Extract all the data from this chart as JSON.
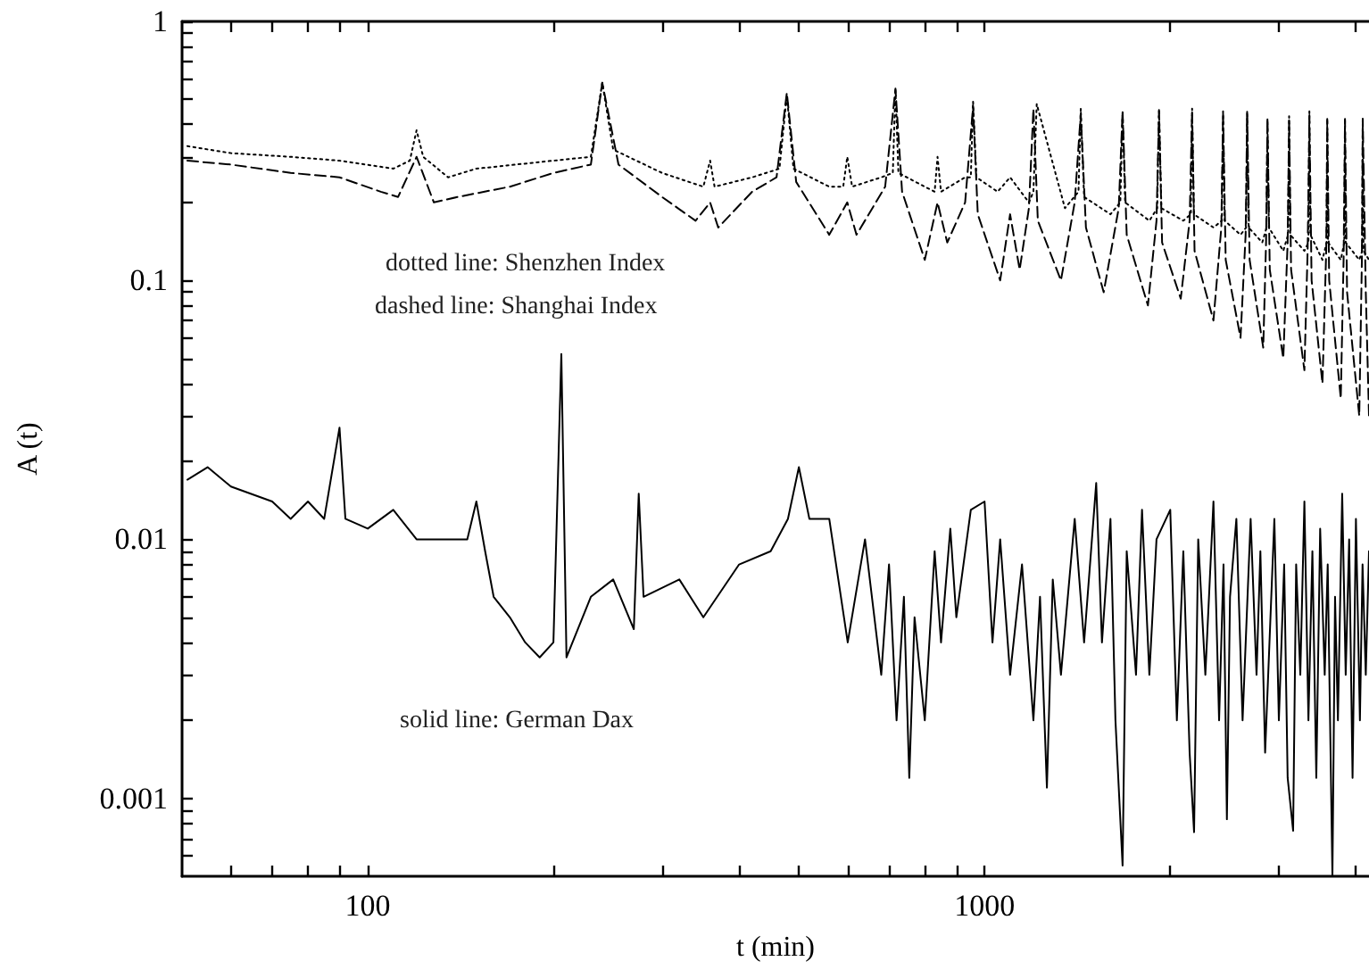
{
  "chart_data": {
    "type": "line",
    "xlabel": "t (min)",
    "ylabel": "A (t)",
    "log": "xy",
    "marker": "none",
    "xlim": [
      50,
      4200
    ],
    "ylim": [
      0.0005,
      1
    ],
    "xticks": [
      {
        "value": 60,
        "label": null
      },
      {
        "value": 70,
        "label": null
      },
      {
        "value": 80,
        "label": null
      },
      {
        "value": 90,
        "label": null
      },
      100,
      {
        "value": 200,
        "label": null
      },
      {
        "value": 300,
        "label": null
      },
      {
        "value": 400,
        "label": null
      },
      {
        "value": 500,
        "label": null
      },
      {
        "value": 600,
        "label": null
      },
      {
        "value": 700,
        "label": null
      },
      {
        "value": 800,
        "label": null
      },
      {
        "value": 900,
        "label": null
      },
      1000,
      {
        "value": 2000,
        "label": null
      },
      {
        "value": 3000,
        "label": null
      },
      {
        "value": 4000,
        "label": null
      }
    ],
    "yticks": [
      {
        "value": 0.0006,
        "label": null
      },
      {
        "value": 0.0007,
        "label": null
      },
      {
        "value": 0.0008,
        "label": null
      },
      {
        "value": 0.0009,
        "label": null
      },
      0.001,
      {
        "value": 0.002,
        "label": null
      },
      {
        "value": 0.003,
        "label": null
      },
      {
        "value": 0.004,
        "label": null
      },
      {
        "value": 0.005,
        "label": null
      },
      {
        "value": 0.006,
        "label": null
      },
      {
        "value": 0.007,
        "label": null
      },
      {
        "value": 0.008,
        "label": null
      },
      {
        "value": 0.009,
        "label": null
      },
      0.01,
      {
        "value": 0.02,
        "label": null
      },
      {
        "value": 0.03,
        "label": null
      },
      {
        "value": 0.04,
        "label": null
      },
      {
        "value": 0.05,
        "label": null
      },
      {
        "value": 0.06,
        "label": null
      },
      {
        "value": 0.07,
        "label": null
      },
      {
        "value": 0.08,
        "label": null
      },
      {
        "value": 0.09,
        "label": null
      },
      0.1,
      {
        "value": 0.2,
        "label": null
      },
      {
        "value": 0.3,
        "label": null
      },
      {
        "value": 0.4,
        "label": null
      },
      {
        "value": 0.5,
        "label": null
      },
      {
        "value": 0.6,
        "label": null
      },
      {
        "value": 0.7,
        "label": null
      },
      {
        "value": 0.8,
        "label": null
      },
      {
        "value": 0.9,
        "label": null
      },
      1
    ],
    "annotations": [
      "dotted line: Shenzhen Index",
      "dashed line: Shanghai Index",
      "solid line: German Dax"
    ],
    "series": [
      {
        "color": "#000000",
        "line_style": "dotted",
        "x": [
          51,
          60,
          75,
          90,
          110,
          117,
          120,
          123,
          135,
          150,
          200,
          230,
          240,
          250,
          300,
          350,
          359,
          365,
          420,
          465,
          478,
          490,
          560,
          590,
          599,
          610,
          680,
          710,
          717,
          725,
          800,
          830,
          839,
          850,
          930,
          950,
          958,
          970,
          1050,
          1100,
          1180,
          1200,
          1215,
          1350,
          1420,
          1432,
          1450,
          1600,
          1660,
          1674,
          1690,
          1850,
          1905,
          1918,
          1935,
          2100,
          2160,
          2170,
          2185,
          2350,
          2425,
          2436,
          2450,
          2600,
          2655,
          2665,
          2680,
          2820,
          2865,
          2875,
          2890,
          3050,
          3105,
          3117,
          3130,
          3300,
          3350,
          3362,
          3375,
          3530,
          3585,
          3594,
          3605,
          3780,
          3830,
          3840,
          3850,
          4050,
          4095,
          4103,
          4115,
          4200
        ],
        "values": [
          0.33,
          0.31,
          0.3,
          0.29,
          0.27,
          0.29,
          0.38,
          0.3,
          0.25,
          0.27,
          0.29,
          0.3,
          0.58,
          0.32,
          0.26,
          0.23,
          0.29,
          0.23,
          0.25,
          0.27,
          0.52,
          0.27,
          0.23,
          0.23,
          0.3,
          0.23,
          0.25,
          0.26,
          0.55,
          0.26,
          0.23,
          0.22,
          0.3,
          0.22,
          0.25,
          0.25,
          0.49,
          0.25,
          0.22,
          0.25,
          0.2,
          0.22,
          0.48,
          0.19,
          0.22,
          0.46,
          0.21,
          0.18,
          0.2,
          0.45,
          0.2,
          0.17,
          0.19,
          0.46,
          0.19,
          0.17,
          0.18,
          0.46,
          0.18,
          0.16,
          0.17,
          0.45,
          0.17,
          0.15,
          0.16,
          0.45,
          0.16,
          0.14,
          0.16,
          0.42,
          0.16,
          0.13,
          0.15,
          0.43,
          0.15,
          0.13,
          0.14,
          0.45,
          0.15,
          0.12,
          0.14,
          0.42,
          0.14,
          0.12,
          0.14,
          0.42,
          0.14,
          0.12,
          0.13,
          0.42,
          0.13,
          0.12
        ]
      },
      {
        "color": "#000000",
        "line_style": "dashed",
        "x": [
          51,
          60,
          75,
          90,
          105,
          112,
          120,
          128,
          140,
          170,
          200,
          230,
          240,
          255,
          300,
          340,
          359,
          370,
          420,
          460,
          478,
          495,
          560,
          599,
          620,
          690,
          717,
          735,
          800,
          839,
          870,
          930,
          958,
          975,
          1060,
          1100,
          1140,
          1180,
          1200,
          1220,
          1330,
          1400,
          1432,
          1460,
          1560,
          1650,
          1674,
          1700,
          1840,
          1900,
          1918,
          1940,
          2080,
          2150,
          2170,
          2190,
          2350,
          2420,
          2436,
          2460,
          2600,
          2650,
          2665,
          2690,
          2830,
          2860,
          2875,
          2900,
          3050,
          3100,
          3117,
          3140,
          3300,
          3340,
          3362,
          3390,
          3530,
          3580,
          3594,
          3620,
          3780,
          3820,
          3840,
          3870,
          4050,
          4090,
          4103,
          4150,
          4200
        ],
        "values": [
          0.29,
          0.28,
          0.26,
          0.25,
          0.22,
          0.21,
          0.3,
          0.2,
          0.21,
          0.23,
          0.26,
          0.28,
          0.58,
          0.28,
          0.21,
          0.17,
          0.2,
          0.16,
          0.22,
          0.25,
          0.53,
          0.24,
          0.15,
          0.2,
          0.15,
          0.23,
          0.55,
          0.22,
          0.12,
          0.2,
          0.14,
          0.2,
          0.47,
          0.18,
          0.1,
          0.18,
          0.11,
          0.19,
          0.46,
          0.17,
          0.1,
          0.2,
          0.44,
          0.16,
          0.09,
          0.19,
          0.45,
          0.15,
          0.08,
          0.17,
          0.45,
          0.14,
          0.085,
          0.17,
          0.45,
          0.13,
          0.07,
          0.16,
          0.44,
          0.12,
          0.06,
          0.15,
          0.44,
          0.12,
          0.055,
          0.14,
          0.42,
          0.11,
          0.05,
          0.14,
          0.42,
          0.11,
          0.045,
          0.13,
          0.43,
          0.1,
          0.04,
          0.13,
          0.42,
          0.1,
          0.035,
          0.12,
          0.42,
          0.09,
          0.03,
          0.12,
          0.42,
          0.09,
          0.03
        ]
      },
      {
        "color": "#000000",
        "line_style": "solid",
        "x": [
          51,
          55,
          60,
          70,
          75,
          80,
          85,
          90,
          92,
          100,
          110,
          120,
          130,
          145,
          150,
          155,
          160,
          170,
          180,
          190,
          200,
          206,
          210,
          230,
          250,
          270,
          275,
          280,
          320,
          350,
          400,
          450,
          480,
          500,
          520,
          560,
          600,
          640,
          680,
          700,
          720,
          740,
          755,
          770,
          800,
          830,
          850,
          880,
          900,
          950,
          1000,
          1030,
          1060,
          1100,
          1150,
          1200,
          1230,
          1262,
          1290,
          1330,
          1400,
          1450,
          1517,
          1550,
          1600,
          1630,
          1674,
          1700,
          1760,
          1800,
          1850,
          1900,
          2000,
          2050,
          2100,
          2150,
          2186,
          2220,
          2280,
          2350,
          2400,
          2440,
          2471,
          2500,
          2560,
          2620,
          2700,
          2760,
          2800,
          2850,
          2950,
          3000,
          3060,
          3100,
          3164,
          3200,
          3250,
          3300,
          3350,
          3400,
          3450,
          3500,
          3560,
          3600,
          3664,
          3700,
          3740,
          3800,
          3850,
          3900,
          3950,
          4000,
          4060,
          4100,
          4150,
          4200
        ],
        "values": [
          0.017,
          0.019,
          0.016,
          0.014,
          0.012,
          0.014,
          0.012,
          0.027,
          0.012,
          0.011,
          0.013,
          0.01,
          0.01,
          0.01,
          0.014,
          0.009,
          0.006,
          0.005,
          0.004,
          0.0035,
          0.004,
          0.052,
          0.0035,
          0.006,
          0.007,
          0.0045,
          0.015,
          0.006,
          0.007,
          0.005,
          0.008,
          0.009,
          0.012,
          0.019,
          0.012,
          0.012,
          0.004,
          0.01,
          0.003,
          0.008,
          0.002,
          0.006,
          0.0012,
          0.005,
          0.002,
          0.009,
          0.004,
          0.011,
          0.005,
          0.013,
          0.014,
          0.004,
          0.01,
          0.003,
          0.008,
          0.002,
          0.006,
          0.0011,
          0.007,
          0.003,
          0.012,
          0.004,
          0.0165,
          0.004,
          0.012,
          0.002,
          0.00055,
          0.009,
          0.003,
          0.013,
          0.003,
          0.01,
          0.013,
          0.002,
          0.009,
          0.0015,
          0.00074,
          0.01,
          0.003,
          0.014,
          0.002,
          0.008,
          0.00083,
          0.006,
          0.012,
          0.002,
          0.012,
          0.003,
          0.009,
          0.0015,
          0.012,
          0.002,
          0.008,
          0.0012,
          0.00075,
          0.008,
          0.003,
          0.014,
          0.002,
          0.009,
          0.0012,
          0.011,
          0.003,
          0.008,
          0.0005,
          0.006,
          0.002,
          0.015,
          0.003,
          0.01,
          0.0012,
          0.012,
          0.002,
          0.008,
          0.003,
          0.009
        ]
      }
    ]
  }
}
